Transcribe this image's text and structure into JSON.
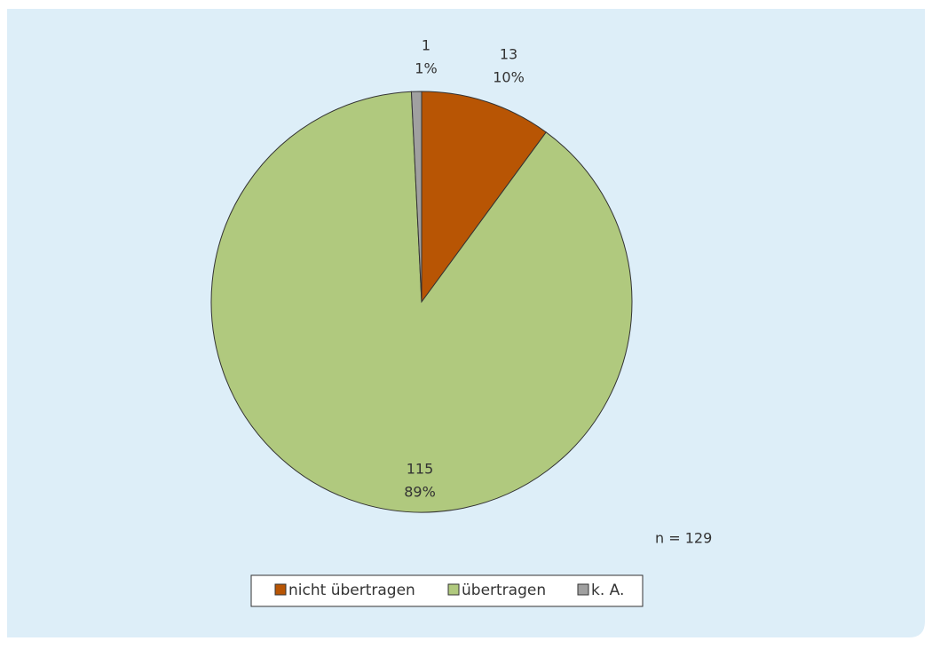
{
  "chart_data": {
    "type": "pie",
    "categories": [
      "nicht übertragen",
      "übertragen",
      "k. A."
    ],
    "values": [
      13,
      115,
      1
    ],
    "percent_labels": [
      "10%",
      "89%",
      "1%"
    ],
    "colors": [
      "#b85504",
      "#b0c97e",
      "#a0a0a0"
    ],
    "annotation": "n = 129",
    "legend": "bottom"
  }
}
